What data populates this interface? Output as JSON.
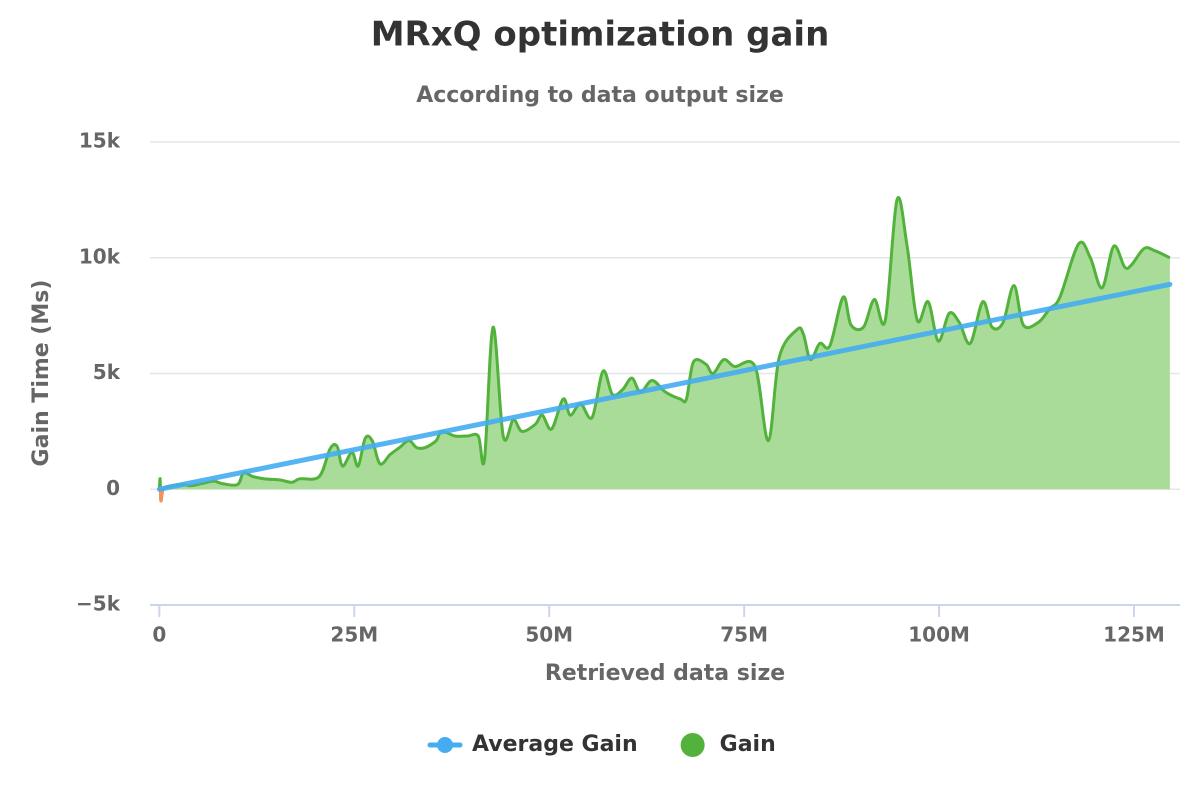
{
  "chart_data": {
    "type": "area",
    "title": "MRxQ optimization gain",
    "subtitle": "According to data output size",
    "x_label": "Retrieved data size",
    "y_label": "Gain Time (Ms)",
    "xlim": [
      -1200000,
      130900000
    ],
    "xticks": [
      {
        "value": 0,
        "label": "0"
      },
      {
        "value": 25000000,
        "label": "25M"
      },
      {
        "value": 50000000,
        "label": "50M"
      },
      {
        "value": 75000000,
        "label": "75M"
      },
      {
        "value": 100000000,
        "label": "100M"
      },
      {
        "value": 125000000,
        "label": "125M"
      }
    ],
    "ylim": [
      -5000,
      15000
    ],
    "yticks": [
      {
        "value": -5000,
        "label": "−5k"
      },
      0,
      {
        "value": 5000,
        "label": "5k"
      },
      {
        "value": 10000,
        "label": "10k"
      },
      {
        "value": 15000,
        "label": "15k"
      }
    ],
    "grid": true,
    "legend": "bottom",
    "series": [
      {
        "name": "Average Gain",
        "type": "line",
        "color": "#45acf2",
        "x": [
          0,
          129600000
        ],
        "values": [
          0,
          8850
        ]
      },
      {
        "name": "Gain",
        "type": "area",
        "color": "#52b23b",
        "negative_color": "#f5925a",
        "fill_color": "#a9dc98",
        "x": [
          0,
          100000,
          200000,
          500000,
          1500000,
          3000000,
          4000000,
          5500000,
          7000000,
          8000000,
          10000000,
          10800000,
          12000000,
          13500000,
          15500000,
          17000000,
          18000000,
          20500000,
          21900000,
          22800000,
          23500000,
          24700000,
          25500000,
          26400000,
          27300000,
          28300000,
          29600000,
          30800000,
          32000000,
          33000000,
          34100000,
          35500000,
          36200000,
          37900000,
          39500000,
          40900000,
          41700000,
          42800000,
          44100000,
          45400000,
          46500000,
          48200000,
          49100000,
          50300000,
          51800000,
          52700000,
          54000000,
          55500000,
          56900000,
          58100000,
          59400000,
          60600000,
          61700000,
          63200000,
          64900000,
          66800000,
          67600000,
          68500000,
          70100000,
          71000000,
          72400000,
          73800000,
          76400000,
          78100000,
          79500000,
          81800000,
          82600000,
          83500000,
          84700000,
          86000000,
          87700000,
          88700000,
          90300000,
          91700000,
          93100000,
          94600000,
          95900000,
          97200000,
          98600000,
          99900000,
          101300000,
          102600000,
          104000000,
          105600000,
          106800000,
          108200000,
          109600000,
          110800000,
          112700000,
          114200000,
          115500000,
          117900000,
          119400000,
          120900000,
          122400000,
          123800000,
          124700000,
          126300000,
          127700000,
          129600000
        ],
        "values": [
          0,
          450,
          -500,
          0,
          150,
          200,
          150,
          250,
          350,
          250,
          200,
          700,
          550,
          450,
          400,
          300,
          450,
          550,
          1750,
          1850,
          1000,
          1600,
          1000,
          2200,
          2100,
          1100,
          1500,
          1800,
          2100,
          1800,
          1800,
          2100,
          2500,
          2300,
          2300,
          2300,
          1300,
          7000,
          2300,
          3000,
          2500,
          2800,
          3200,
          2600,
          3900,
          3200,
          3700,
          3100,
          5100,
          4100,
          4300,
          4800,
          4200,
          4700,
          4200,
          3900,
          3900,
          5500,
          5400,
          5000,
          5600,
          5300,
          5300,
          2100,
          5700,
          6900,
          6700,
          5600,
          6300,
          6200,
          8300,
          7100,
          7000,
          8200,
          7300,
          12500,
          10500,
          7300,
          8100,
          6400,
          7600,
          7200,
          6300,
          8100,
          7000,
          7200,
          8800,
          7100,
          7200,
          7800,
          8300,
          10600,
          10000,
          8700,
          10500,
          9600,
          9700,
          10400,
          10300,
          10000
        ]
      }
    ]
  }
}
